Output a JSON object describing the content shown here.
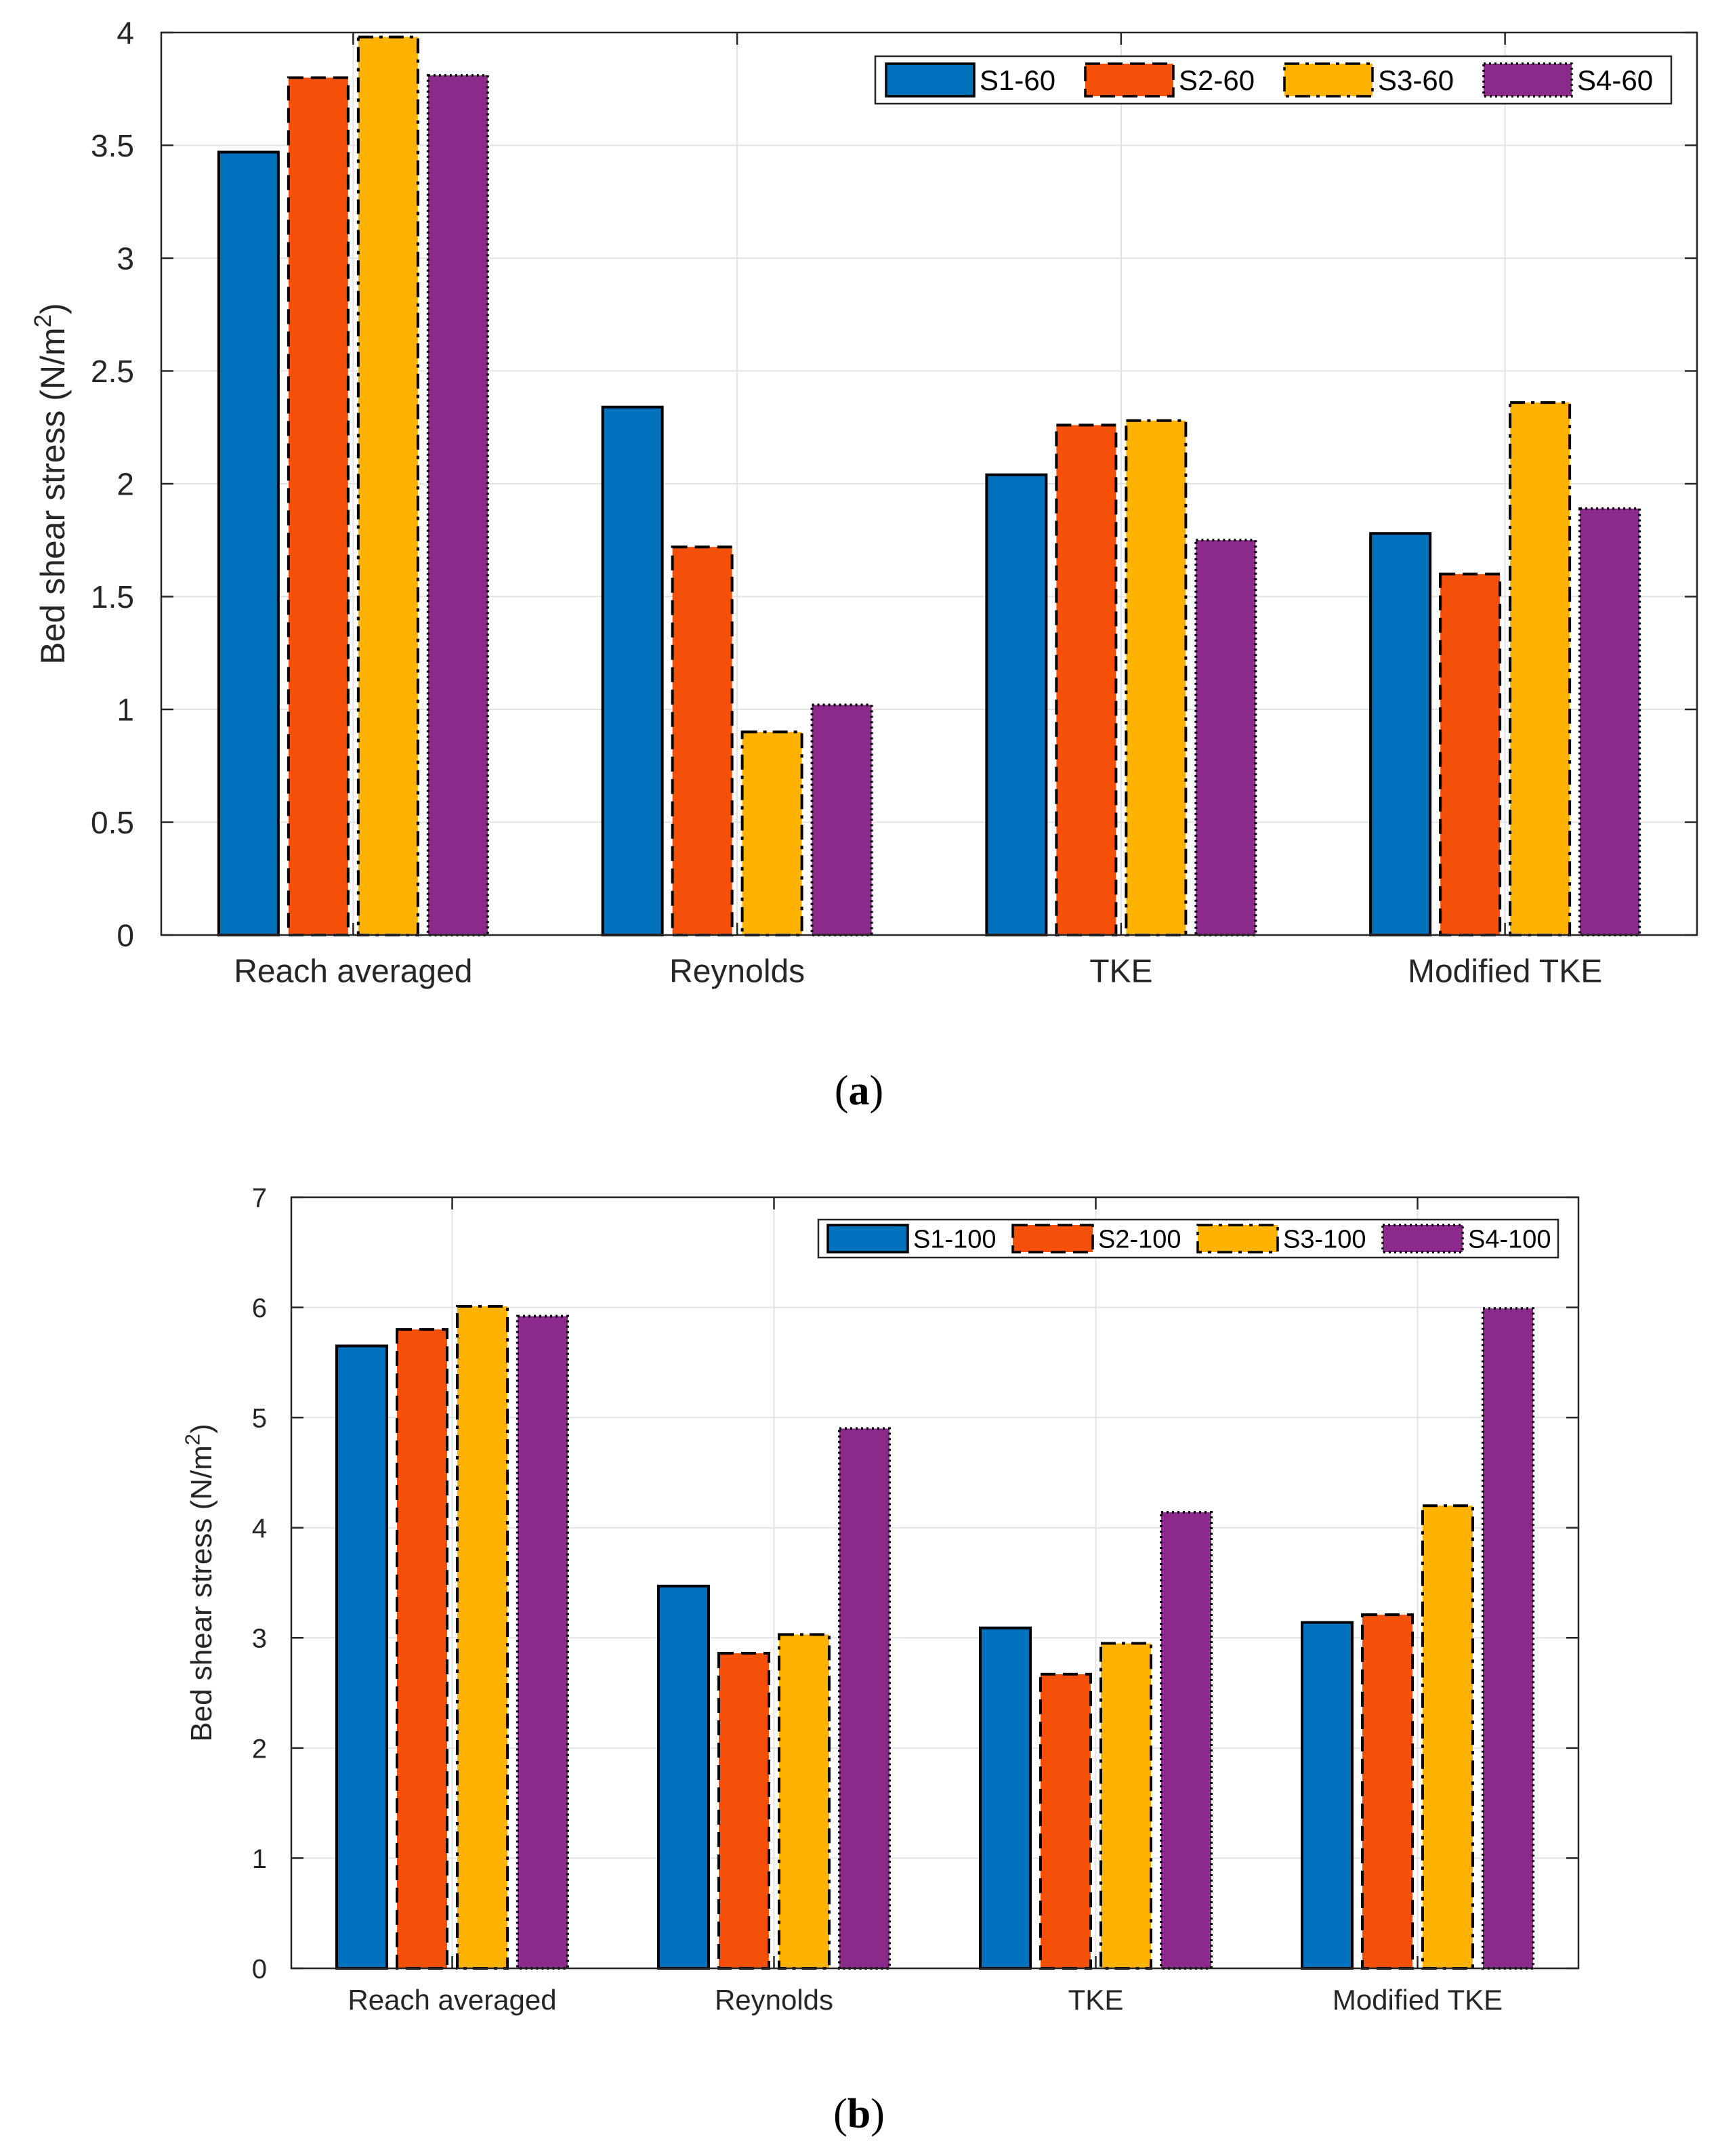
{
  "chart_data": [
    {
      "type": "bar",
      "caption_letter": "a",
      "categories": [
        "Reach averaged",
        "Reynolds",
        "TKE",
        "Modified TKE"
      ],
      "ylabel_main": "Bed shear stress (N/m",
      "ylabel_sup": "2",
      "ylabel_tail": ")",
      "ylim": [
        0,
        4
      ],
      "yticks": [
        "0",
        "0.5",
        "1",
        "1.5",
        "2",
        "2.5",
        "3",
        "3.5",
        "4"
      ],
      "grid": true,
      "legend_position": "top-right",
      "series": [
        {
          "name": "S1-60",
          "color": "#0072BD",
          "values": [
            3.47,
            2.34,
            2.04,
            1.78
          ]
        },
        {
          "name": "S2-60",
          "color": "#F5500A",
          "values": [
            3.8,
            1.72,
            2.26,
            1.6
          ]
        },
        {
          "name": "S3-60",
          "color": "#FFB200",
          "values": [
            3.98,
            0.9,
            2.28,
            2.36
          ]
        },
        {
          "name": "S4-60",
          "color": "#8C2A8C",
          "values": [
            3.81,
            1.02,
            1.75,
            1.89
          ]
        }
      ]
    },
    {
      "type": "bar",
      "caption_letter": "b",
      "categories": [
        "Reach averaged",
        "Reynolds",
        "TKE",
        "Modified TKE"
      ],
      "ylabel_main": "Bed shear stress (N/m",
      "ylabel_sup": "2",
      "ylabel_tail": ")",
      "ylim": [
        0,
        7
      ],
      "yticks": [
        "0",
        "1",
        "2",
        "3",
        "4",
        "5",
        "6",
        "7"
      ],
      "grid": true,
      "legend_position": "top-right",
      "series": [
        {
          "name": "S1-100",
          "color": "#0072BD",
          "values": [
            5.65,
            3.47,
            3.09,
            3.14
          ]
        },
        {
          "name": "S2-100",
          "color": "#F5500A",
          "values": [
            5.8,
            2.86,
            2.67,
            3.21
          ]
        },
        {
          "name": "S3-100",
          "color": "#FFB200",
          "values": [
            6.01,
            3.03,
            2.95,
            4.2
          ]
        },
        {
          "name": "S4-100",
          "color": "#8C2A8C",
          "values": [
            5.92,
            4.9,
            4.14,
            5.99
          ]
        }
      ]
    }
  ]
}
